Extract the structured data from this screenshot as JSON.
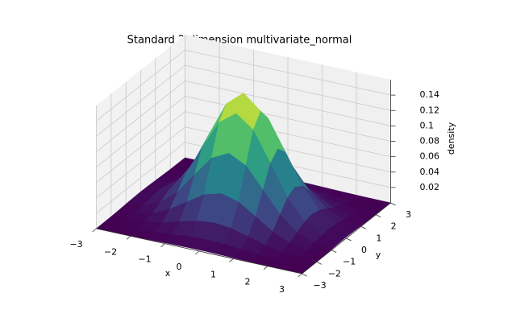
{
  "chart_data": {
    "type": "surface",
    "title": "Standard 2-dimension multivariate_normal",
    "xlabel": "x",
    "ylabel": "y",
    "zlabel": "density",
    "colormap": "viridis",
    "x": [
      -3,
      -2.5,
      -2,
      -1.5,
      -1,
      -0.5,
      0,
      0.5,
      1,
      1.5,
      2,
      2.5,
      3
    ],
    "y": [
      -3,
      -2.5,
      -2,
      -1.5,
      -1,
      -0.5,
      0,
      0.5,
      1,
      1.5,
      2,
      2.5,
      3
    ],
    "z": [
      [
        0,
        0.0001,
        0.0002,
        0.0006,
        0.0011,
        0.0016,
        0.0018,
        0.0016,
        0.0011,
        0.0006,
        0.0002,
        0.0001,
        0
      ],
      [
        0.0001,
        0.0003,
        0.0009,
        0.0023,
        0.0042,
        0.0062,
        0.007,
        0.0062,
        0.0042,
        0.0023,
        0.0009,
        0.0003,
        0.0001
      ],
      [
        0.0002,
        0.0009,
        0.0029,
        0.007,
        0.0131,
        0.019,
        0.0215,
        0.019,
        0.0131,
        0.007,
        0.0029,
        0.0009,
        0.0002
      ],
      [
        0.0006,
        0.0023,
        0.007,
        0.0168,
        0.0313,
        0.0456,
        0.0517,
        0.0456,
        0.0313,
        0.0168,
        0.007,
        0.0023,
        0.0006
      ],
      [
        0.0011,
        0.0042,
        0.0131,
        0.0313,
        0.0585,
        0.0852,
        0.0965,
        0.0852,
        0.0585,
        0.0313,
        0.0131,
        0.0042,
        0.0011
      ],
      [
        0.0016,
        0.0062,
        0.019,
        0.0456,
        0.0852,
        0.1239,
        0.1405,
        0.1239,
        0.0852,
        0.0456,
        0.019,
        0.0062,
        0.0016
      ],
      [
        0.0018,
        0.007,
        0.0215,
        0.0517,
        0.0965,
        0.1405,
        0.1592,
        0.1405,
        0.0965,
        0.0517,
        0.0215,
        0.007,
        0.0018
      ],
      [
        0.0016,
        0.0062,
        0.019,
        0.0456,
        0.0852,
        0.1239,
        0.1405,
        0.1239,
        0.0852,
        0.0456,
        0.019,
        0.0062,
        0.0016
      ],
      [
        0.0011,
        0.0042,
        0.0131,
        0.0313,
        0.0585,
        0.0852,
        0.0965,
        0.0852,
        0.0585,
        0.0313,
        0.0131,
        0.0042,
        0.0011
      ],
      [
        0.0006,
        0.0023,
        0.007,
        0.0168,
        0.0313,
        0.0456,
        0.0517,
        0.0456,
        0.0313,
        0.0168,
        0.007,
        0.0023,
        0.0006
      ],
      [
        0.0002,
        0.0009,
        0.0029,
        0.007,
        0.0131,
        0.019,
        0.0215,
        0.019,
        0.0131,
        0.007,
        0.0029,
        0.0009,
        0.0002
      ],
      [
        0.0001,
        0.0003,
        0.0009,
        0.0023,
        0.0042,
        0.0062,
        0.007,
        0.0062,
        0.0042,
        0.0023,
        0.0009,
        0.0003,
        0.0001
      ],
      [
        0,
        0.0001,
        0.0002,
        0.0006,
        0.0011,
        0.0016,
        0.0018,
        0.0016,
        0.0011,
        0.0006,
        0.0002,
        0.0001,
        0
      ]
    ],
    "xlim": [
      -3,
      3
    ],
    "ylim": [
      -3,
      3
    ],
    "zlim": [
      0,
      0.16
    ],
    "xticks": [
      {
        "value": -3,
        "label": "−3"
      },
      {
        "value": -2,
        "label": "−2"
      },
      {
        "value": -1,
        "label": "−1"
      },
      0,
      1,
      2,
      3
    ],
    "yticks": [
      {
        "value": -3,
        "label": "−3"
      },
      {
        "value": -2,
        "label": "−2"
      },
      {
        "value": -1,
        "label": "−1"
      },
      0,
      1,
      2,
      3
    ],
    "zticks": [
      0.02,
      0.04,
      0.06,
      0.08,
      0.1,
      0.12,
      0.14
    ],
    "grid": true
  }
}
